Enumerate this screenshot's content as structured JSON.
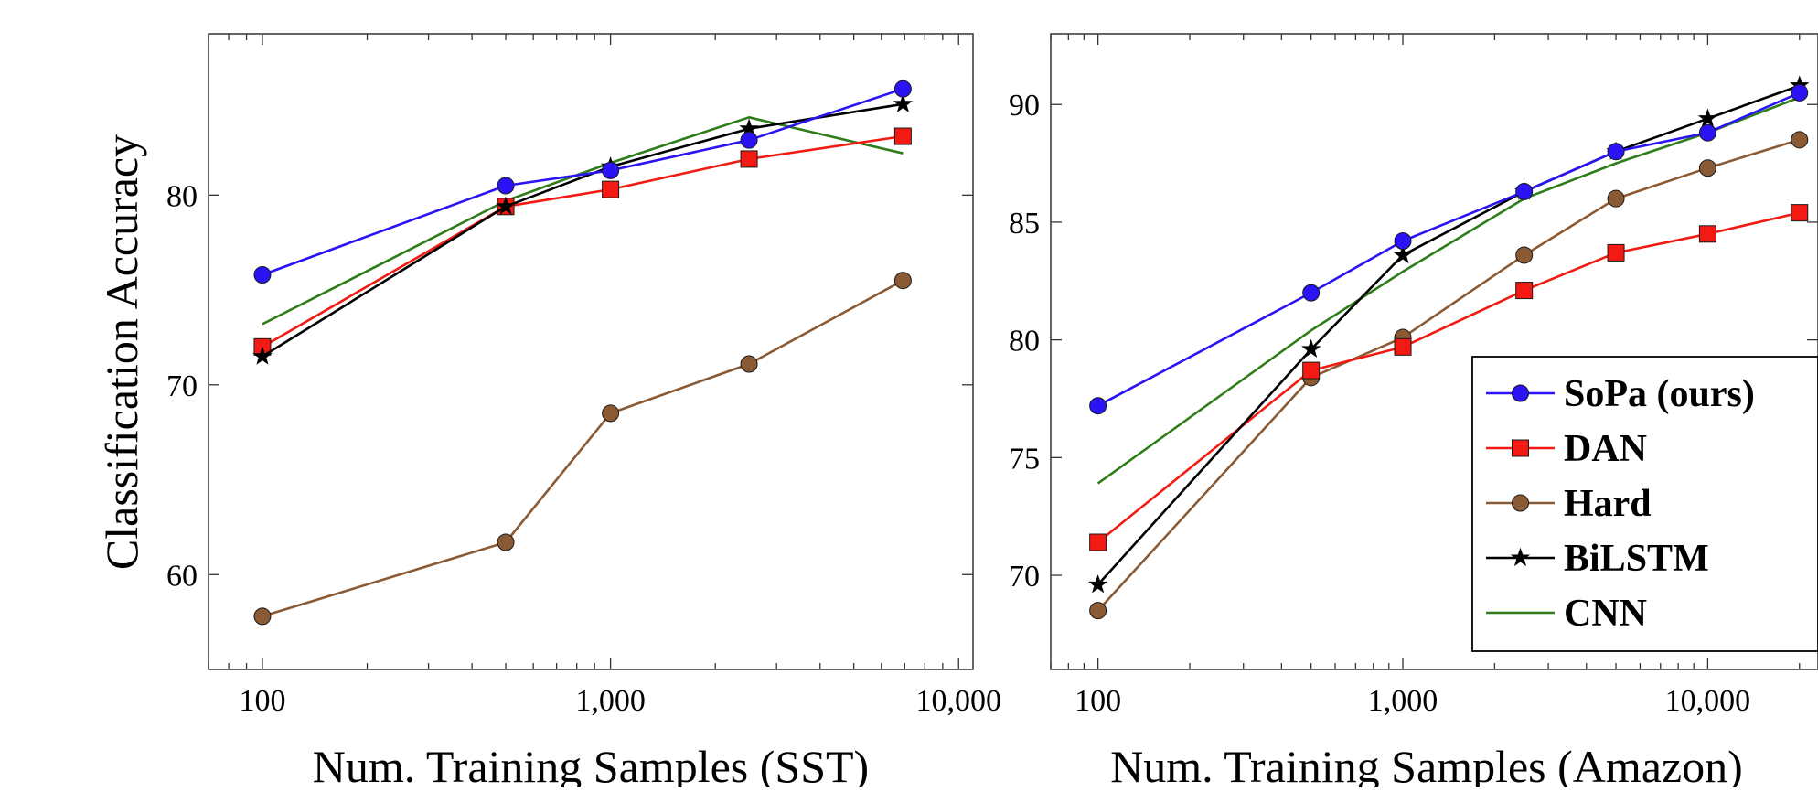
{
  "ylabel": "Classification Accuracy",
  "legend_color_codes": {
    "sopa": "#2a14f5",
    "dan": "#f21a12",
    "hard": "#8a5a34",
    "bilstm": "#000000",
    "cnn": "#2e7d1a"
  },
  "chart_data": [
    {
      "type": "line",
      "xlabel": "Num. Training Samples (SST)",
      "ylabel": "Classification Accuracy",
      "xscale": "log",
      "xlim": [
        70,
        11000
      ],
      "ylim": [
        55,
        88.5
      ],
      "xticks": [
        100,
        1000,
        10000
      ],
      "xtick_labels": [
        "100",
        "1,000",
        "10,000"
      ],
      "yticks": [
        60,
        70,
        80
      ],
      "ytick_labels": [
        "60",
        "70",
        "80"
      ],
      "legend": null,
      "series": [
        {
          "name": "SoPa (ours)",
          "key": "sopa",
          "color": "#2a14f5",
          "marker": "circle",
          "x": [
            100,
            500,
            1000,
            2500,
            6920
          ],
          "y": [
            75.8,
            80.5,
            81.3,
            82.9,
            85.6
          ]
        },
        {
          "name": "DAN",
          "key": "dan",
          "color": "#f21a12",
          "marker": "square",
          "x": [
            100,
            500,
            1000,
            2500,
            6920
          ],
          "y": [
            72.0,
            79.4,
            80.3,
            81.9,
            83.1
          ]
        },
        {
          "name": "Hard",
          "key": "hard",
          "color": "#8a5a34",
          "marker": "circle",
          "x": [
            100,
            500,
            1000,
            2500,
            6920
          ],
          "y": [
            57.8,
            61.7,
            68.5,
            71.1,
            75.5
          ]
        },
        {
          "name": "BiLSTM",
          "key": "bilstm",
          "color": "#000000",
          "marker": "star",
          "x": [
            100,
            500,
            1000,
            2500,
            6920
          ],
          "y": [
            71.5,
            79.4,
            81.5,
            83.5,
            84.8
          ]
        },
        {
          "name": "CNN",
          "key": "cnn",
          "color": "#2e7d1a",
          "marker": "none",
          "x": [
            100,
            500,
            1000,
            2500,
            6920
          ],
          "y": [
            73.2,
            79.7,
            81.7,
            84.1,
            82.2
          ]
        }
      ]
    },
    {
      "type": "line",
      "xlabel": "Num. Training Samples (Amazon)",
      "ylabel": "",
      "xscale": "log",
      "xlim": [
        70,
        23000
      ],
      "ylim": [
        66,
        93
      ],
      "xticks": [
        100,
        1000,
        10000
      ],
      "xtick_labels": [
        "100",
        "1,000",
        "10,000"
      ],
      "yticks": [
        70,
        75,
        80,
        85,
        90
      ],
      "ytick_labels": [
        "70",
        "75",
        "80",
        "85",
        "90"
      ],
      "legend": "bottom-right",
      "series": [
        {
          "name": "SoPa (ours)",
          "key": "sopa",
          "color": "#2a14f5",
          "marker": "circle",
          "x": [
            100,
            500,
            1000,
            2500,
            5000,
            10000,
            20000
          ],
          "y": [
            77.2,
            82.0,
            84.2,
            86.3,
            88.0,
            88.8,
            90.5
          ]
        },
        {
          "name": "DAN",
          "key": "dan",
          "color": "#f21a12",
          "marker": "square",
          "x": [
            100,
            500,
            1000,
            2500,
            5000,
            10000,
            20000
          ],
          "y": [
            71.4,
            78.7,
            79.7,
            82.1,
            83.7,
            84.5,
            85.4
          ]
        },
        {
          "name": "Hard",
          "key": "hard",
          "color": "#8a5a34",
          "marker": "circle",
          "x": [
            100,
            500,
            1000,
            2500,
            5000,
            10000,
            20000
          ],
          "y": [
            68.5,
            78.4,
            80.1,
            83.6,
            86.0,
            87.3,
            88.5
          ]
        },
        {
          "name": "BiLSTM",
          "key": "bilstm",
          "color": "#000000",
          "marker": "star",
          "x": [
            100,
            500,
            1000,
            2500,
            5000,
            10000,
            20000
          ],
          "y": [
            69.6,
            79.6,
            83.6,
            86.3,
            88.0,
            89.4,
            90.8
          ]
        },
        {
          "name": "CNN",
          "key": "cnn",
          "color": "#2e7d1a",
          "marker": "none",
          "x": [
            100,
            500,
            1000,
            2500,
            5000,
            10000,
            20000
          ],
          "y": [
            73.9,
            80.4,
            82.9,
            86.0,
            87.5,
            88.8,
            90.3
          ]
        }
      ]
    }
  ]
}
